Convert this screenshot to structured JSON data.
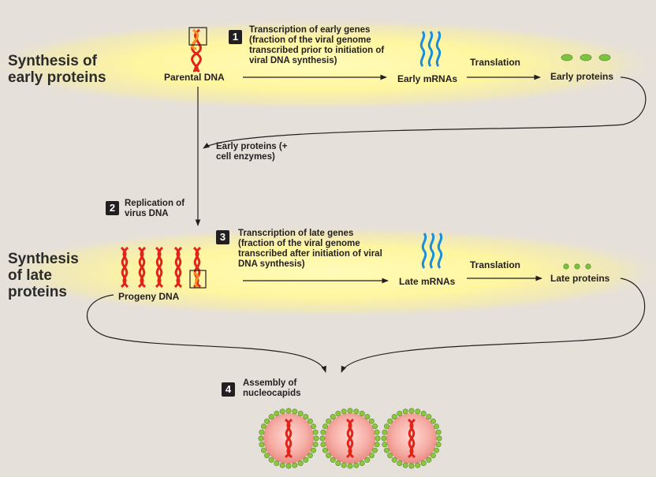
{
  "sections": {
    "early": "Synthesis of early proteins",
    "late": "Synthesis of late proteins"
  },
  "steps": [
    {
      "number": "1",
      "text": "Transcription of early genes (fraction of the viral genome transcribed prior to initiation of viral DNA synthesis)"
    },
    {
      "number": "2",
      "text": "Replication of virus DNA"
    },
    {
      "number": "3",
      "text": "Transcription of late genes (fraction of the viral genome transcribed after initiation of viral DNA synthesis)"
    },
    {
      "number": "4",
      "text": "Assembly of nucleocapids"
    }
  ],
  "labels": {
    "parental_dna": "Parental DNA",
    "early_mrnas": "Early mRNAs",
    "translation_early": "Translation",
    "early_proteins": "Early proteins",
    "early_proteins_enzymes": "Early proteins (+ cell enzymes)",
    "progeny_dna": "Progeny DNA",
    "late_mrnas": "Late mRNAs",
    "translation_late": "Translation",
    "late_proteins": "Late proteins"
  },
  "colors": {
    "background": "#e6e0da",
    "glow": "#fff9a8",
    "dna_red": "#e2231a",
    "dna_highlight": "#f7931e",
    "mrna_blue": "#1a8fd8",
    "protein_green": "#7dc242",
    "capsid_fill": "#f4a6a0",
    "capsomer_green": "#8cc63f"
  }
}
